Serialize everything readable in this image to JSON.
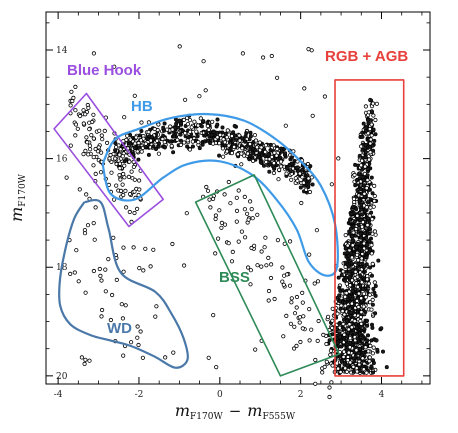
{
  "colors": {
    "blue_hook": "#9b4fe0",
    "hb": "#3f9be8",
    "rgb_agb": "#e8403a",
    "bss": "#2e8b57",
    "wd": "#4a78a8",
    "axis": "#000000"
  },
  "chart_data": {
    "type": "scatter",
    "xlabel": {
      "main": "m",
      "sub1": "F170W",
      "minus": "−",
      "sub2": "F555W"
    },
    "ylabel": {
      "main": "m",
      "sub": "F170W"
    },
    "xlim": [
      -4.3,
      5.2
    ],
    "ylim": [
      20.15,
      13.3
    ],
    "y_inverted": true,
    "x_ticks": [
      -4,
      -2,
      0,
      2,
      4
    ],
    "y_ticks": [
      14,
      16,
      18,
      20
    ],
    "x_tick_labels": [
      "-4",
      "-2",
      "0",
      "2",
      "4"
    ],
    "y_tick_labels": [
      "14",
      "16",
      "18",
      "20"
    ],
    "regions": [
      {
        "id": "blue_hook",
        "label": "Blue Hook",
        "shape": "rectangle",
        "corners": [
          [
            -4.1,
            15.45
          ],
          [
            -3.3,
            14.8
          ],
          [
            -1.4,
            16.75
          ],
          [
            -2.25,
            17.25
          ]
        ]
      },
      {
        "id": "hb",
        "label": "HB",
        "shape": "contour",
        "outline": [
          [
            -2.9,
            16.1
          ],
          [
            -2.6,
            15.65
          ],
          [
            -2.0,
            15.45
          ],
          [
            -1.2,
            15.25
          ],
          [
            -0.3,
            15.18
          ],
          [
            0.6,
            15.3
          ],
          [
            1.4,
            15.65
          ],
          [
            2.0,
            16.05
          ],
          [
            2.5,
            16.5
          ],
          [
            2.85,
            17.2
          ],
          [
            2.9,
            18.0
          ],
          [
            2.6,
            18.15
          ],
          [
            2.2,
            17.9
          ],
          [
            1.9,
            17.3
          ],
          [
            1.4,
            16.75
          ],
          [
            0.8,
            16.3
          ],
          [
            0.0,
            16.05
          ],
          [
            -0.8,
            16.1
          ],
          [
            -1.4,
            16.35
          ],
          [
            -2.1,
            16.75
          ],
          [
            -2.7,
            16.65
          ],
          [
            -2.9,
            16.1
          ]
        ]
      },
      {
        "id": "rgb_agb",
        "label": "RGB + AGB",
        "shape": "rectangle",
        "corners": [
          [
            2.85,
            14.55
          ],
          [
            4.55,
            14.55
          ],
          [
            4.55,
            20.0
          ],
          [
            2.85,
            20.0
          ]
        ]
      },
      {
        "id": "bss",
        "label": "BSS",
        "shape": "rectangle",
        "corners": [
          [
            -0.6,
            16.8
          ],
          [
            0.85,
            16.3
          ],
          [
            2.95,
            19.6
          ],
          [
            1.5,
            20.0
          ]
        ]
      },
      {
        "id": "wd",
        "label": "WD",
        "shape": "contour",
        "outline": [
          [
            -3.35,
            16.8
          ],
          [
            -2.95,
            16.8
          ],
          [
            -2.75,
            17.3
          ],
          [
            -2.45,
            18.1
          ],
          [
            -1.6,
            18.45
          ],
          [
            -1.2,
            18.85
          ],
          [
            -0.9,
            19.3
          ],
          [
            -0.8,
            19.7
          ],
          [
            -1.1,
            19.85
          ],
          [
            -1.6,
            19.65
          ],
          [
            -2.2,
            19.45
          ],
          [
            -2.7,
            19.35
          ],
          [
            -3.2,
            19.25
          ],
          [
            -3.7,
            19.05
          ],
          [
            -3.95,
            18.7
          ],
          [
            -3.95,
            18.2
          ],
          [
            -3.8,
            17.6
          ],
          [
            -3.6,
            17.1
          ],
          [
            -3.35,
            16.8
          ]
        ]
      }
    ],
    "series": [
      {
        "population": "hb",
        "x_range": [
          -2.6,
          2.3
        ],
        "ridge": [
          [
            -2.6,
            15.95
          ],
          [
            -2.0,
            15.7
          ],
          [
            -1.0,
            15.5
          ],
          [
            0.0,
            15.6
          ],
          [
            0.8,
            15.85
          ],
          [
            1.5,
            16.05
          ],
          [
            2.2,
            16.35
          ]
        ],
        "count": 650,
        "spread": 0.14
      },
      {
        "population": "blue_hook",
        "x_range": [
          -3.7,
          -1.9
        ],
        "ridge": [
          [
            -3.7,
            15.2
          ],
          [
            -3.0,
            15.8
          ],
          [
            -2.3,
            16.4
          ],
          [
            -1.9,
            16.7
          ]
        ],
        "count": 130,
        "spread": 0.3
      },
      {
        "population": "rgb_agb",
        "x_range": [
          2.95,
          4.1
        ],
        "ridge": [
          [
            3.75,
            14.9
          ],
          [
            3.65,
            15.6
          ],
          [
            3.55,
            16.5
          ],
          [
            3.45,
            17.5
          ],
          [
            3.35,
            18.5
          ],
          [
            3.3,
            19.2
          ],
          [
            3.35,
            19.9
          ]
        ],
        "count": 1500,
        "spread": 0.12
      },
      {
        "population": "bss",
        "x_range": [
          -0.5,
          2.8
        ],
        "ridge": [
          [
            -0.3,
            16.7
          ],
          [
            0.6,
            17.4
          ],
          [
            1.4,
            18.3
          ],
          [
            2.2,
            19.0
          ],
          [
            2.8,
            19.8
          ]
        ],
        "count": 110,
        "spread": 0.45
      },
      {
        "population": "wd",
        "x_range": [
          -3.8,
          -1.0
        ],
        "ridge": [
          [
            -3.4,
            17.4
          ],
          [
            -2.6,
            18.6
          ],
          [
            -1.6,
            19.4
          ]
        ],
        "count": 40,
        "spread": 0.5
      },
      {
        "population": "field",
        "x_range": [
          -4.0,
          4.0
        ],
        "ridge": [
          [
            -4.0,
            14.0
          ],
          [
            4.0,
            19.5
          ]
        ],
        "count": 70,
        "spread": 3.0
      }
    ]
  }
}
